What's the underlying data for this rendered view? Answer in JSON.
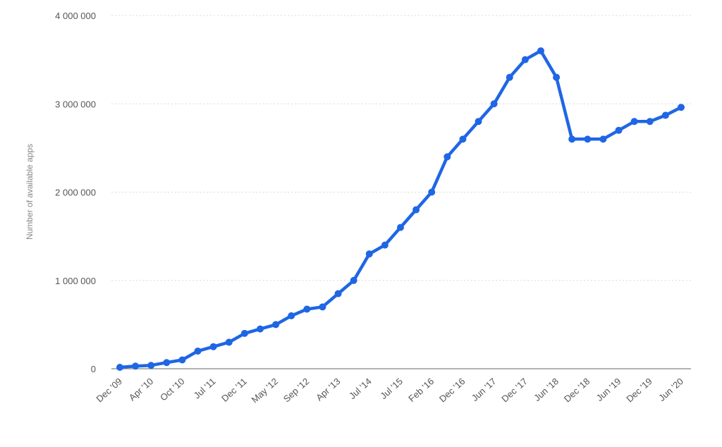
{
  "chart_data": {
    "type": "line",
    "title": "",
    "xlabel": "",
    "ylabel": "Number of available apps",
    "ylim": [
      0,
      4000000
    ],
    "y_ticks": [
      0,
      1000000,
      2000000,
      3000000,
      4000000
    ],
    "y_tick_labels": [
      "0",
      "1 000 000",
      "2 000 000",
      "3 000 000",
      "4 000 000"
    ],
    "x_tick_labels": [
      "Dec '09",
      "Apr '10",
      "Oct '10",
      "Jul '11",
      "Dec '11",
      "May '12",
      "Sep '12",
      "Apr '13",
      "Jul '14",
      "Jul '15",
      "Feb '16",
      "Dec '16",
      "Jun '17",
      "Dec '17",
      "Jun '18",
      "Dec '18",
      "Jun '19",
      "Dec '19",
      "Jun '20"
    ],
    "grid": true,
    "legend": "none",
    "line_color": "#1f66e5",
    "series": [
      {
        "values": [
          16000,
          30000,
          38000,
          70000,
          100000,
          200000,
          250000,
          300000,
          400000,
          450000,
          500000,
          600000,
          675000,
          700000,
          850000,
          1000000,
          1300000,
          1400000,
          1600000,
          1800000,
          2000000,
          2400000,
          2600000,
          2800000,
          3000000,
          3300000,
          3500000,
          3600000,
          3300000,
          2600000,
          2600000,
          2600000,
          2700000,
          2800000,
          2800000,
          2870000,
          2960000
        ]
      }
    ]
  }
}
